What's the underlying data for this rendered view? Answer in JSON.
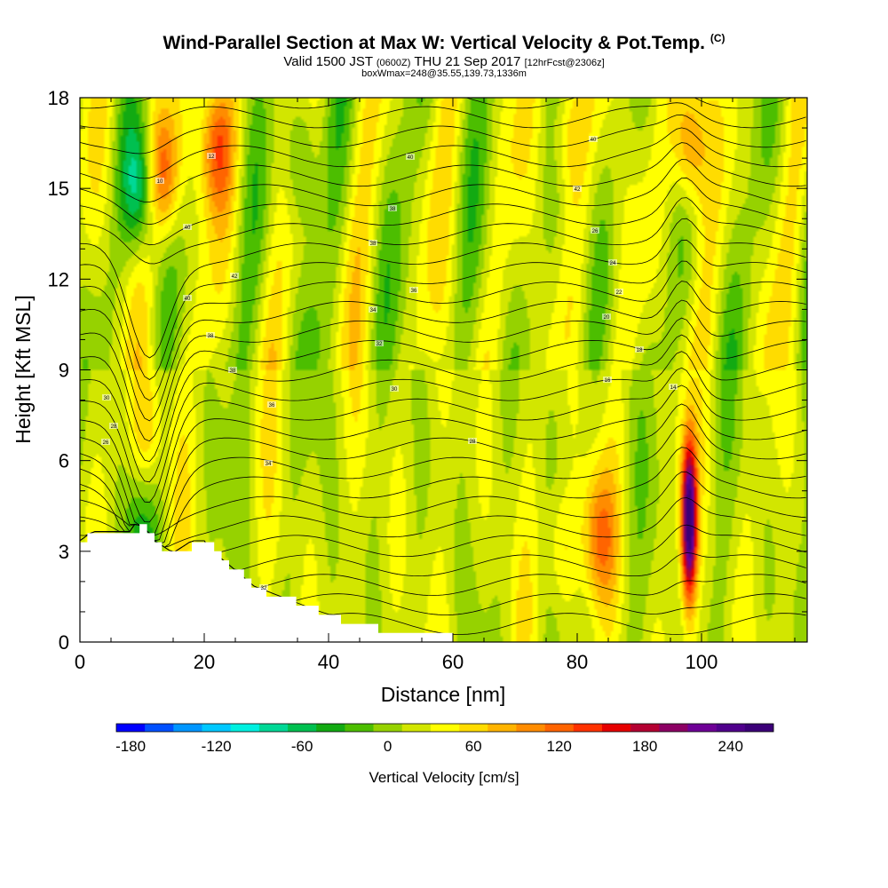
{
  "header": {
    "title_main": "Wind-Parallel Section at Max W: Vertical Velocity & Pot.Temp.",
    "title_mark": "(C)",
    "valid_a": "Valid 1500 JST",
    "valid_b": "(0600Z)",
    "valid_c": "THU 21 Sep 2017",
    "valid_d": "[12hrFcst@2306z]",
    "boxinfo": "boxWmax=248@35.55,139.73,1336m"
  },
  "chart_data": {
    "type": "heatmap",
    "xlabel": "Distance [nm]",
    "ylabel": "Height [Kft MSL]",
    "xlim": [
      0,
      117
    ],
    "ylim": [
      0,
      18
    ],
    "xticks": [
      0,
      20,
      40,
      60,
      80,
      100
    ],
    "yticks": [
      0,
      3,
      6,
      9,
      12,
      15,
      18
    ],
    "colorbar": {
      "title": "Vertical Velocity [cm/s]",
      "range": [
        -200,
        260
      ],
      "step": 20,
      "tick_values": [
        -180,
        -120,
        -60,
        0,
        60,
        120,
        180,
        240
      ],
      "tick_labels": [
        "-180",
        "-120",
        "-60",
        "0",
        "60",
        "120",
        "180",
        "240"
      ],
      "colors": [
        "#0000ff",
        "#0050ff",
        "#0096ff",
        "#00c8ff",
        "#00f0e0",
        "#00d896",
        "#00c050",
        "#12aa12",
        "#4cbe00",
        "#96d200",
        "#d2e600",
        "#ffff00",
        "#ffdc00",
        "#ffb400",
        "#ff8c00",
        "#ff6400",
        "#ff3200",
        "#e60000",
        "#b40032",
        "#8c0064",
        "#6e0096",
        "#50008c",
        "#3c0078"
      ]
    },
    "velocity_features": [
      {
        "x_nm": 9.5,
        "height_kft": 15.0,
        "peak_cms": -100
      },
      {
        "x_nm": 13.5,
        "height_kft": 15.5,
        "peak_cms": 110
      },
      {
        "x_nm": 22.0,
        "height_kft": 16.5,
        "peak_cms": 100
      },
      {
        "x_nm": 35.5,
        "height_kft": 16.0,
        "peak_cms": -60
      },
      {
        "x_nm": 11.0,
        "height_kft": 7.0,
        "peak_cms": 50
      },
      {
        "x_nm": 9.5,
        "height_kft": 3.5,
        "peak_cms": -50
      },
      {
        "x_nm": 83.5,
        "height_kft": 3.5,
        "peak_cms": 80
      },
      {
        "x_nm": 77.5,
        "height_kft": 3.0,
        "peak_cms": 50
      },
      {
        "x_nm": 98.0,
        "height_kft": 4.0,
        "peak_cms": 248
      },
      {
        "x_nm": 98.0,
        "height_kft": 16.5,
        "peak_cms": 100
      },
      {
        "x_nm": 78.0,
        "height_kft": 17.0,
        "peak_cms": 60
      }
    ],
    "pot_temp_contours": {
      "count": 28,
      "labels": [
        "40",
        "42",
        "40",
        "38",
        "38",
        "36",
        "34",
        "32",
        "30",
        "28",
        "26",
        "24",
        "22",
        "20",
        "18",
        "16",
        "14",
        "12",
        "10"
      ]
    },
    "terrain_profile_kft": [
      [
        0,
        3.3
      ],
      [
        2,
        3.6
      ],
      [
        8,
        3.6
      ],
      [
        9,
        3.9
      ],
      [
        11,
        3.6
      ],
      [
        12,
        3.3
      ],
      [
        15,
        2.9
      ],
      [
        18,
        3.3
      ],
      [
        20,
        3.3
      ],
      [
        21,
        3.0
      ],
      [
        24,
        2.5
      ],
      [
        28,
        1.8
      ],
      [
        33,
        1.4
      ],
      [
        38,
        1.0
      ],
      [
        44,
        0.6
      ],
      [
        50,
        0.3
      ],
      [
        55,
        0.2
      ],
      [
        60,
        0.15
      ],
      [
        80,
        0.1
      ],
      [
        100,
        0.1
      ],
      [
        117,
        0.1
      ]
    ]
  }
}
